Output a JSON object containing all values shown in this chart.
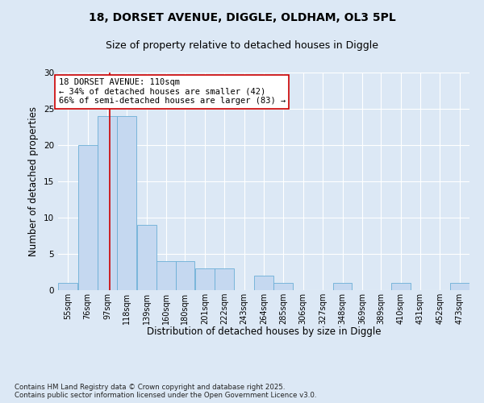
{
  "title_line1": "18, DORSET AVENUE, DIGGLE, OLDHAM, OL3 5PL",
  "title_line2": "Size of property relative to detached houses in Diggle",
  "xlabel": "Distribution of detached houses by size in Diggle",
  "ylabel": "Number of detached properties",
  "bins": [
    55,
    76,
    97,
    118,
    139,
    160,
    180,
    201,
    222,
    243,
    264,
    285,
    306,
    327,
    348,
    369,
    389,
    410,
    431,
    452,
    473
  ],
  "counts": [
    1,
    20,
    24,
    24,
    9,
    4,
    4,
    3,
    3,
    0,
    2,
    1,
    0,
    0,
    1,
    0,
    0,
    1,
    0,
    0,
    1
  ],
  "bar_color": "#c5d8f0",
  "bar_edge_color": "#6baed6",
  "vline_x": 110,
  "vline_color": "#cc0000",
  "annotation_text": "18 DORSET AVENUE: 110sqm\n← 34% of detached houses are smaller (42)\n66% of semi-detached houses are larger (83) →",
  "annotation_box_color": "#ffffff",
  "annotation_box_edge": "#cc0000",
  "ylim": [
    0,
    30
  ],
  "yticks": [
    0,
    5,
    10,
    15,
    20,
    25,
    30
  ],
  "background_color": "#dce8f5",
  "plot_bg_color": "#dce8f5",
  "footer": "Contains HM Land Registry data © Crown copyright and database right 2025.\nContains public sector information licensed under the Open Government Licence v3.0.",
  "title_fontsize": 10,
  "subtitle_fontsize": 9,
  "tick_label_fontsize": 7,
  "axis_label_fontsize": 8.5,
  "annotation_fontsize": 7.5
}
